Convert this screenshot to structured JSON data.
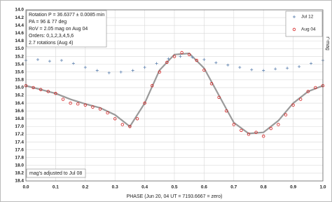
{
  "chart_data": {
    "type": "scatter",
    "info_box": [
      "Rotation P = 36.6377 ± 0.0085 min",
      "PA = 96 & 77 deg",
      "RoV = 2.05 mag on Aug 04",
      "Orders: 0,1,2,3,4,5,6",
      "2.7 rotations (Aug 4)"
    ],
    "note": "mag's adjusted to Jul 08",
    "x_label": "PHASE (Jun 20, 04 UT = 7193.6667 = zero)",
    "y_label": "r'-mag",
    "xlim": [
      0,
      1
    ],
    "xticks": [
      {
        "value": 0,
        "label": "0.0"
      },
      0.1,
      0.2,
      0.3,
      0.4,
      0.5,
      0.6,
      0.7,
      0.8,
      0.9,
      {
        "value": 1,
        "label": "1.0"
      }
    ],
    "ylim": [
      14,
      18.4
    ],
    "y_reversed": true,
    "yticks": [
      {
        "value": 14,
        "label": "14.0"
      },
      14.2,
      14.4,
      14.6,
      14.8,
      {
        "value": 15,
        "label": "15.0"
      },
      15.2,
      15.4,
      15.6,
      15.8,
      {
        "value": 16,
        "label": "16.0"
      },
      16.2,
      16.4,
      16.6,
      16.8,
      {
        "value": 17,
        "label": "17.0"
      },
      17.2,
      17.4,
      17.6,
      17.8,
      {
        "value": 18,
        "label": "18.0"
      },
      18.2,
      18.4
    ],
    "grid": true,
    "legend": "upper right",
    "series": [
      {
        "name": "Jul 12",
        "color": "#6f8fb8",
        "marker": "plus",
        "x": [
          0,
          0.04,
          0.08,
          0.12,
          0.16,
          0.2,
          0.24,
          0.28,
          0.32,
          0.36,
          0.4,
          0.44,
          0.48,
          0.52,
          0.56,
          0.6,
          0.64,
          0.68,
          0.72,
          0.76,
          0.8,
          0.84,
          0.88,
          0.92,
          0.96,
          1
        ],
        "values": [
          15.3,
          15.28,
          15.32,
          15.3,
          15.38,
          15.48,
          15.56,
          15.62,
          15.6,
          15.56,
          15.48,
          15.38,
          15.26,
          15.2,
          15.22,
          15.28,
          15.36,
          15.42,
          15.48,
          15.54,
          15.56,
          15.52,
          15.5,
          15.46,
          15.38,
          15.3
        ]
      },
      {
        "name": "Aug 04",
        "color": "#d62020",
        "marker": "circle",
        "x": [
          0,
          0.025,
          0.05,
          0.075,
          0.1,
          0.125,
          0.15,
          0.175,
          0.2,
          0.225,
          0.25,
          0.275,
          0.3,
          0.325,
          0.35,
          0.375,
          0.4,
          0.425,
          0.45,
          0.475,
          0.5,
          0.525,
          0.55,
          0.575,
          0.6,
          0.625,
          0.65,
          0.675,
          0.7,
          0.725,
          0.75,
          0.775,
          0.8,
          0.825,
          0.85,
          0.875,
          0.9,
          0.925,
          0.95,
          0.975,
          1
        ],
        "values": [
          15.95,
          16,
          16.05,
          16.1,
          16.15,
          16.3,
          16.4,
          16.42,
          16.45,
          16.5,
          16.55,
          16.65,
          16.8,
          16.95,
          17,
          16.8,
          16.4,
          15.95,
          15.6,
          15.35,
          15.2,
          15.1,
          15.15,
          15.3,
          15.55,
          15.9,
          16.25,
          16.6,
          16.95,
          17.1,
          17.2,
          17.15,
          17.25,
          17.05,
          16.95,
          16.7,
          16.45,
          16.3,
          16.1,
          16,
          15.95
        ]
      }
    ],
    "fit": {
      "color": "#9a9a9a",
      "x": [
        0,
        0.05,
        0.1,
        0.15,
        0.2,
        0.25,
        0.3,
        0.35,
        0.4,
        0.45,
        0.5,
        0.55,
        0.6,
        0.65,
        0.7,
        0.75,
        0.8,
        0.85,
        0.9,
        0.95,
        1
      ],
      "values": [
        15.95,
        16.05,
        16.15,
        16.3,
        16.42,
        16.52,
        16.7,
        17,
        16.4,
        15.55,
        15.15,
        15.12,
        15.5,
        16.2,
        16.9,
        17.18,
        17.15,
        16.85,
        16.4,
        16.1,
        15.95
      ]
    }
  }
}
